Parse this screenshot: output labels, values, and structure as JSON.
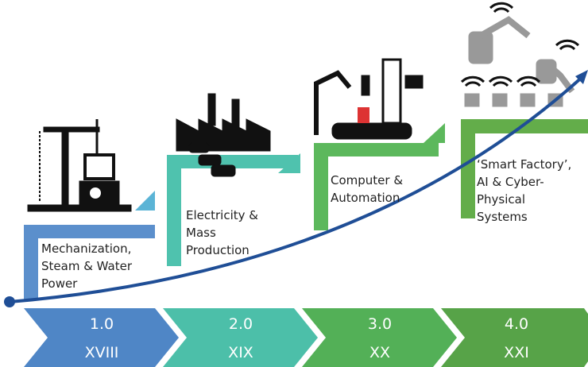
{
  "stages": [
    {
      "version": "1.0",
      "century": "XVIII",
      "description": [
        "Mechanization,",
        "Steam & Water",
        "Power"
      ]
    },
    {
      "version": "2.0",
      "century": "XIX",
      "description": [
        "Electricity &",
        "Mass",
        "Production"
      ]
    },
    {
      "version": "3.0",
      "century": "XX",
      "description": [
        "Computer &",
        "Automation"
      ]
    },
    {
      "version": "4.0",
      "century": "XXI",
      "description": [
        "‘Smart Factory’,",
        "AI & Cyber-",
        "Physical",
        "Systems"
      ]
    }
  ]
}
